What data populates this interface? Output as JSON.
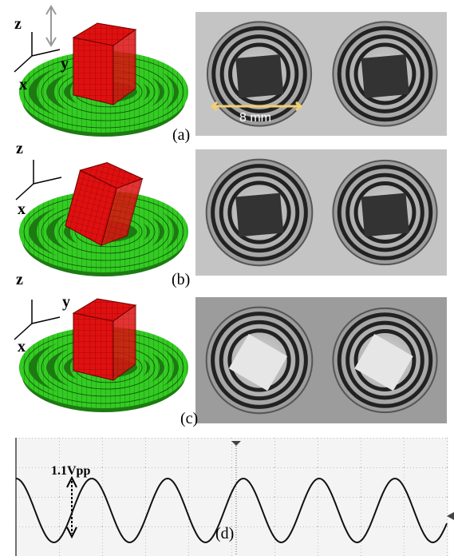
{
  "panels": [
    {
      "label": "(a)",
      "axes": {
        "z": "z",
        "y": "y",
        "x": "x"
      },
      "scale_bar": "8 mm"
    },
    {
      "label": "(b)",
      "axes": {
        "z": "z",
        "x": "x"
      }
    },
    {
      "label": "(c)",
      "axes": {
        "z": "z",
        "y": "y",
        "x": "x"
      }
    },
    {
      "label": "(d)",
      "annotation": "1.1Vpp"
    }
  ]
}
